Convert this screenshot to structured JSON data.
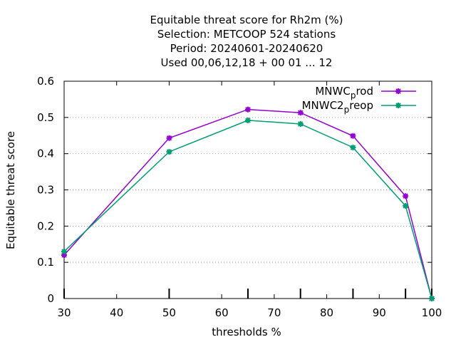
{
  "chart_data": {
    "type": "line",
    "title_lines": [
      "Equitable threat score  for Rh2m (%)",
      "Selection: METCOOP    524 stations",
      "Period: 20240601-20240620",
      "Used  00,06,12,18 + 00 01 ... 12"
    ],
    "xlabel": "thresholds %",
    "ylabel": "Equitable threat score",
    "xlim": [
      30,
      100
    ],
    "ylim": [
      0,
      0.6
    ],
    "x_ticks": [
      30,
      40,
      50,
      60,
      70,
      80,
      90,
      100
    ],
    "y_ticks": [
      0,
      0.1,
      0.2,
      0.3,
      0.4,
      0.5,
      0.6
    ],
    "x_tick_labels": [
      "30",
      "40",
      "50",
      "60",
      "70",
      "80",
      "90",
      "100"
    ],
    "y_tick_labels": [
      "0",
      "0.1",
      "0.2",
      "0.3",
      "0.4",
      "0.5",
      "0.6"
    ],
    "data_marks_x": [
      30,
      50,
      65,
      75,
      85,
      95,
      100
    ],
    "grid": true,
    "legend_position": "top-right",
    "series": [
      {
        "name": "MNWC_prod",
        "legend_main": "MNWC",
        "legend_sub": "p",
        "legend_rest": "rod",
        "color": "#9400d3",
        "x": [
          30,
          50,
          65,
          75,
          85,
          95,
          100
        ],
        "y": [
          0.12,
          0.443,
          0.522,
          0.513,
          0.449,
          0.283,
          0.0
        ]
      },
      {
        "name": "MNWC2_preop",
        "legend_main": "MNWC2",
        "legend_sub": "p",
        "legend_rest": "reop",
        "color": "#009e73",
        "x": [
          30,
          50,
          65,
          75,
          85,
          95,
          100
        ],
        "y": [
          0.13,
          0.405,
          0.492,
          0.482,
          0.417,
          0.256,
          0.0
        ]
      }
    ]
  }
}
